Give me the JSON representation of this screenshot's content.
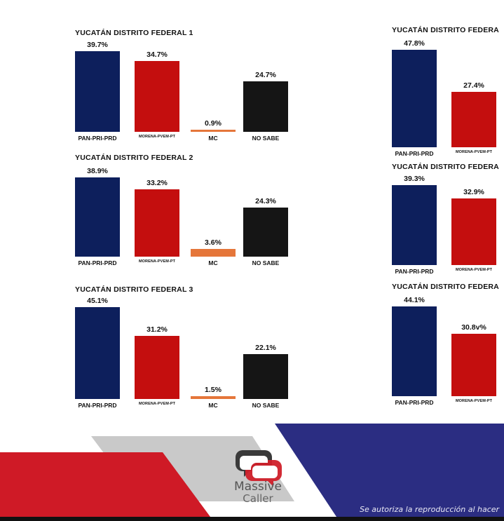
{
  "colors": {
    "pan": "#0d1f5c",
    "morena": "#c40e0e",
    "mc": "#e5763a",
    "nosabe": "#151515",
    "footer_red": "#cf1a26",
    "footer_gray": "#c9c9c9",
    "footer_blue": "#2b2d82"
  },
  "chart_data": [
    {
      "type": "bar",
      "title": "YUCATÁN DISTRITO FEDERAL 1",
      "categories": [
        "PAN-PRI-PRD",
        "MORENA-PVEM-PT",
        "MC",
        "NO SABE"
      ],
      "values": [
        39.7,
        34.7,
        0.9,
        24.7
      ],
      "labels": [
        "39.7%",
        "34.7%",
        "0.9%",
        "24.7%"
      ]
    },
    {
      "type": "bar",
      "title": "YUCATÁN DISTRITO FEDERAL 2",
      "categories": [
        "PAN-PRI-PRD",
        "MORENA-PVEM-PT",
        "MC",
        "NO SABE"
      ],
      "values": [
        38.9,
        33.2,
        3.6,
        24.3
      ],
      "labels": [
        "38.9%",
        "33.2%",
        "3.6%",
        "24.3%"
      ]
    },
    {
      "type": "bar",
      "title": "YUCATÁN DISTRITO FEDERAL 3",
      "categories": [
        "PAN-PRI-PRD",
        "MORENA-PVEM-PT",
        "MC",
        "NO SABE"
      ],
      "values": [
        45.1,
        31.2,
        1.5,
        22.1
      ],
      "labels": [
        "45.1%",
        "31.2%",
        "1.5%",
        "22.1%"
      ]
    },
    {
      "type": "bar",
      "title": "YUCATÁN DISTRITO FEDERA",
      "categories": [
        "PAN-PRI-PRD",
        "MORENA-PVEM-PT"
      ],
      "values": [
        47.8,
        27.4
      ],
      "labels": [
        "47.8%",
        "27.4%"
      ]
    },
    {
      "type": "bar",
      "title": "YUCATÁN DISTRITO FEDERA",
      "categories": [
        "PAN-PRI-PRD",
        "MORENA-PVEM-PT"
      ],
      "values": [
        39.3,
        32.9
      ],
      "labels": [
        "39.3%",
        "32.9%"
      ]
    },
    {
      "type": "bar",
      "title": "YUCATÁN DISTRITO FEDERA",
      "categories": [
        "PAN-PRI-PRD",
        "MORENA-PVEM-PT"
      ],
      "values": [
        44.1,
        30.8
      ],
      "labels": [
        "44.1%",
        "30.8v%"
      ]
    }
  ],
  "logo": {
    "line1": "Massive",
    "line2": "Caller",
    "icon": "speech-bubbles-logo-icon"
  },
  "footer": {
    "note": "Se autoriza la reproducción al hacer"
  }
}
